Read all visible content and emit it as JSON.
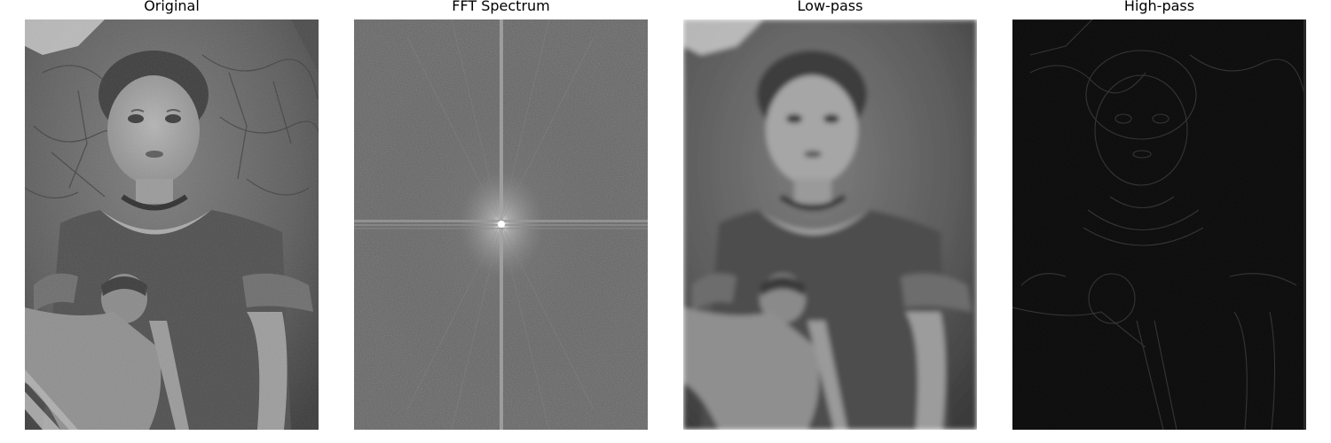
{
  "figure": {
    "panels": [
      {
        "title": "Original",
        "content": "grayscale portrait painting of a young girl holding a doll"
      },
      {
        "title": "FFT Spectrum",
        "content": "log-magnitude frequency spectrum with bright center and cross"
      },
      {
        "title": "Low-pass",
        "content": "blurred grayscale portrait"
      },
      {
        "title": "High-pass",
        "content": "dark image showing only edges of the portrait"
      }
    ]
  }
}
